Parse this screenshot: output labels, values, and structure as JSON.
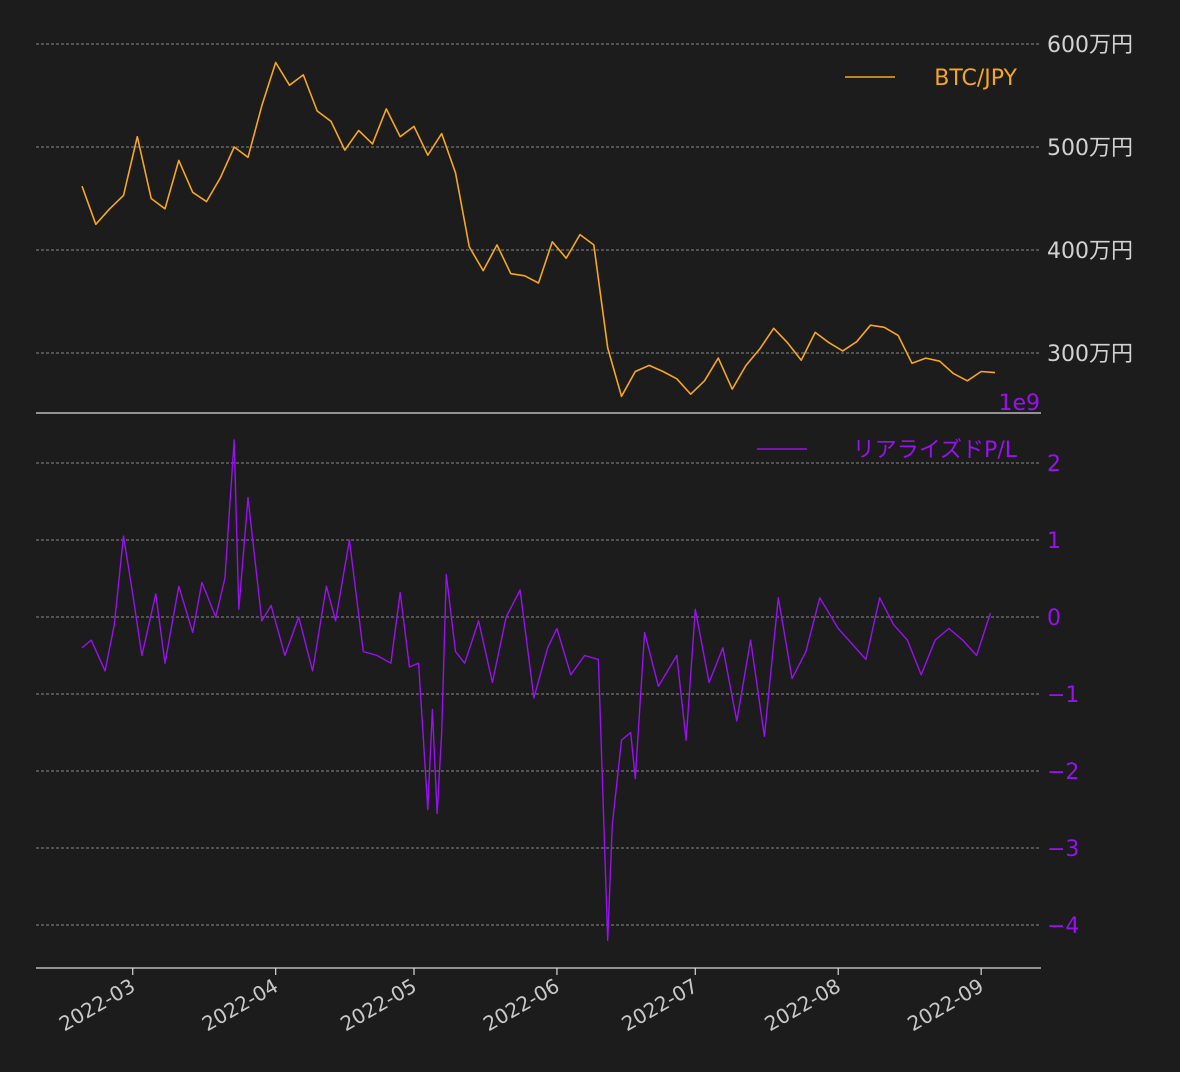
{
  "colors": {
    "background": "#1c1c1c",
    "btc": "#f5a623",
    "pl": "#9a10f0",
    "grid": "#cfcfcf",
    "axis": "#d9d9d9",
    "text": "#d2d2d2"
  },
  "chart_data": [
    {
      "type": "line",
      "panel": "top",
      "legend": "BTC/JPY",
      "legend_position": "top-right",
      "ylim": [
        2500000,
        6300000
      ],
      "y_ticks": [
        3000000,
        4000000,
        5000000,
        6000000
      ],
      "y_tick_labels": [
        "300万円",
        "400万円",
        "500万円",
        "600万円"
      ],
      "grid": true,
      "x_start": "2022-02-18",
      "x_end": "2022-09-04",
      "series": [
        {
          "name": "BTC/JPY",
          "dates": [
            "2022-02-18",
            "2022-02-21",
            "2022-02-24",
            "2022-02-27",
            "2022-03-02",
            "2022-03-05",
            "2022-03-08",
            "2022-03-11",
            "2022-03-14",
            "2022-03-17",
            "2022-03-20",
            "2022-03-23",
            "2022-03-26",
            "2022-03-29",
            "2022-04-01",
            "2022-04-04",
            "2022-04-07",
            "2022-04-10",
            "2022-04-13",
            "2022-04-16",
            "2022-04-19",
            "2022-04-22",
            "2022-04-25",
            "2022-04-28",
            "2022-05-01",
            "2022-05-04",
            "2022-05-07",
            "2022-05-10",
            "2022-05-13",
            "2022-05-16",
            "2022-05-19",
            "2022-05-22",
            "2022-05-25",
            "2022-05-28",
            "2022-05-31",
            "2022-06-03",
            "2022-06-06",
            "2022-06-09",
            "2022-06-12",
            "2022-06-15",
            "2022-06-18",
            "2022-06-21",
            "2022-06-24",
            "2022-06-27",
            "2022-06-30",
            "2022-07-03",
            "2022-07-06",
            "2022-07-09",
            "2022-07-12",
            "2022-07-15",
            "2022-07-18",
            "2022-07-21",
            "2022-07-24",
            "2022-07-27",
            "2022-07-30",
            "2022-08-02",
            "2022-08-05",
            "2022-08-08",
            "2022-08-11",
            "2022-08-14",
            "2022-08-17",
            "2022-08-20",
            "2022-08-23",
            "2022-08-26",
            "2022-08-29",
            "2022-09-01",
            "2022-09-04"
          ],
          "values": [
            4620000,
            4250000,
            4400000,
            4530000,
            5100000,
            4500000,
            4400000,
            4870000,
            4560000,
            4470000,
            4700000,
            5000000,
            4900000,
            5400000,
            5820000,
            5600000,
            5700000,
            5350000,
            5250000,
            4970000,
            5160000,
            5030000,
            5370000,
            5100000,
            5200000,
            4920000,
            5130000,
            4750000,
            4030000,
            3800000,
            4050000,
            3770000,
            3750000,
            3680000,
            4080000,
            3920000,
            4150000,
            4050000,
            3050000,
            2580000,
            2820000,
            2880000,
            2820000,
            2750000,
            2600000,
            2730000,
            2950000,
            2650000,
            2880000,
            3040000,
            3240000,
            3100000,
            2930000,
            3200000,
            3100000,
            3020000,
            3110000,
            3270000,
            3250000,
            3170000,
            2900000,
            2950000,
            2920000,
            2800000,
            2730000,
            2820000,
            2810000
          ]
        }
      ]
    },
    {
      "type": "line",
      "panel": "bottom",
      "legend": "リアライズドP/L",
      "legend_position": "top-right",
      "offset_label": "1e9",
      "ylim": [
        -4.55,
        2.3
      ],
      "y_ticks": [
        -4,
        -3,
        -2,
        -1,
        0,
        1,
        2
      ],
      "y_tick_labels": [
        "−4",
        "−3",
        "−2",
        "−1",
        "0",
        "1",
        "2"
      ],
      "grid": true,
      "series": [
        {
          "name": "リアライズドP/L",
          "dates": [
            "2022-02-18",
            "2022-02-20",
            "2022-02-23",
            "2022-02-25",
            "2022-02-27",
            "2022-03-01",
            "2022-03-03",
            "2022-03-06",
            "2022-03-08",
            "2022-03-11",
            "2022-03-14",
            "2022-03-16",
            "2022-03-19",
            "2022-03-21",
            "2022-03-23",
            "2022-03-24",
            "2022-03-26",
            "2022-03-29",
            "2022-03-31",
            "2022-04-03",
            "2022-04-06",
            "2022-04-09",
            "2022-04-12",
            "2022-04-14",
            "2022-04-17",
            "2022-04-20",
            "2022-04-23",
            "2022-04-26",
            "2022-04-28",
            "2022-04-30",
            "2022-05-02",
            "2022-05-04",
            "2022-05-05",
            "2022-05-06",
            "2022-05-07",
            "2022-05-08",
            "2022-05-10",
            "2022-05-12",
            "2022-05-15",
            "2022-05-18",
            "2022-05-21",
            "2022-05-24",
            "2022-05-27",
            "2022-05-30",
            "2022-06-01",
            "2022-06-04",
            "2022-06-07",
            "2022-06-10",
            "2022-06-12",
            "2022-06-13",
            "2022-06-15",
            "2022-06-17",
            "2022-06-18",
            "2022-06-20",
            "2022-06-23",
            "2022-06-27",
            "2022-06-29",
            "2022-07-01",
            "2022-07-04",
            "2022-07-07",
            "2022-07-10",
            "2022-07-13",
            "2022-07-16",
            "2022-07-19",
            "2022-07-22",
            "2022-07-25",
            "2022-07-28",
            "2022-08-01",
            "2022-08-04",
            "2022-08-07",
            "2022-08-10",
            "2022-08-13",
            "2022-08-16",
            "2022-08-19",
            "2022-08-22",
            "2022-08-25",
            "2022-08-28",
            "2022-08-31",
            "2022-09-03"
          ],
          "values": [
            -0.4,
            -0.3,
            -0.7,
            -0.1,
            1.05,
            0.3,
            -0.5,
            0.3,
            -0.6,
            0.4,
            -0.2,
            0.45,
            0.0,
            0.5,
            2.3,
            0.1,
            1.55,
            -0.05,
            0.15,
            -0.5,
            0.0,
            -0.7,
            0.4,
            -0.05,
            1.0,
            -0.45,
            -0.5,
            -0.6,
            0.32,
            -0.65,
            -0.6,
            -2.5,
            -1.2,
            -2.55,
            -1.5,
            0.55,
            -0.45,
            -0.6,
            -0.05,
            -0.85,
            0.0,
            0.35,
            -1.05,
            -0.4,
            -0.15,
            -0.75,
            -0.5,
            -0.55,
            -4.2,
            -2.7,
            -1.6,
            -1.5,
            -2.1,
            -0.2,
            -0.9,
            -0.5,
            -1.6,
            0.1,
            -0.85,
            -0.4,
            -1.35,
            -0.3,
            -1.55,
            0.25,
            -0.8,
            -0.45,
            0.25,
            -0.15,
            -0.35,
            -0.55,
            0.25,
            -0.1,
            -0.3,
            -0.75,
            -0.3,
            -0.15,
            -0.3,
            -0.5,
            0.05
          ]
        }
      ]
    }
  ],
  "x_axis": {
    "tick_dates": [
      "2022-03-01",
      "2022-04-01",
      "2022-05-01",
      "2022-06-01",
      "2022-07-01",
      "2022-08-01",
      "2022-09-01"
    ],
    "tick_labels": [
      "2022-03",
      "2022-04",
      "2022-05",
      "2022-06",
      "2022-07",
      "2022-08",
      "2022-09"
    ],
    "tick_label_rotation": 30
  }
}
